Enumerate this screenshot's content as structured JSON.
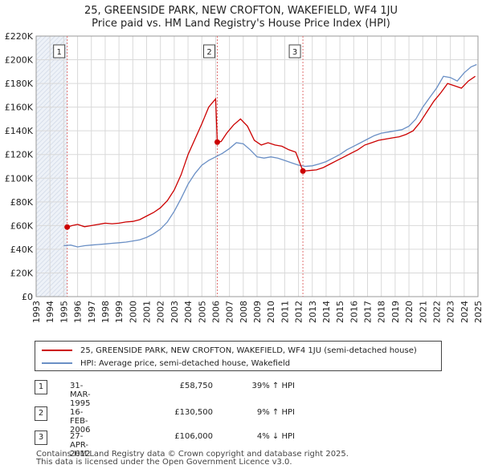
{
  "header": {
    "title_line1": "25, GREENSIDE PARK, NEW CROFTON, WAKEFIELD, WF4 1JU",
    "title_line2": "Price paid vs. HM Land Registry's House Price Index (HPI)"
  },
  "colors": {
    "price_line": "#cc0000",
    "hpi_line": "#6a8fc5",
    "shade": "#e8eef6",
    "grid": "#d9d9d9",
    "vline": "#e07070"
  },
  "chart_data": {
    "type": "line",
    "title": "Price paid vs. HM Land Registry's House Price Index (HPI)",
    "xlim": [
      1993,
      2025
    ],
    "ylim": [
      0,
      220000
    ],
    "x_ticks": [
      1993,
      1994,
      1995,
      1996,
      1997,
      1998,
      1999,
      2000,
      2001,
      2002,
      2003,
      2004,
      2005,
      2006,
      2007,
      2008,
      2009,
      2010,
      2011,
      2012,
      2013,
      2014,
      2015,
      2016,
      2017,
      2018,
      2019,
      2020,
      2021,
      2022,
      2023,
      2024,
      2025
    ],
    "y_ticks": [
      0,
      20000,
      40000,
      60000,
      80000,
      100000,
      120000,
      140000,
      160000,
      180000,
      200000,
      220000
    ],
    "y_tick_labels": [
      "£0",
      "£20K",
      "£40K",
      "£60K",
      "£80K",
      "£100K",
      "£120K",
      "£140K",
      "£160K",
      "£180K",
      "£200K",
      "£220K"
    ],
    "series": [
      {
        "name": "25, GREENSIDE PARK, NEW CROFTON, WAKEFIELD, WF4 1JU (semi-detached house)",
        "color": "#cc0000",
        "points": [
          [
            1995.25,
            58750
          ],
          [
            1995.6,
            60000
          ],
          [
            1996.0,
            61000
          ],
          [
            1996.5,
            59000
          ],
          [
            1997.0,
            60000
          ],
          [
            1997.5,
            61000
          ],
          [
            1998.0,
            62000
          ],
          [
            1998.5,
            61500
          ],
          [
            1999.0,
            62000
          ],
          [
            1999.5,
            63000
          ],
          [
            2000.0,
            63500
          ],
          [
            2000.5,
            65000
          ],
          [
            2001.0,
            68000
          ],
          [
            2001.5,
            71000
          ],
          [
            2002.0,
            75000
          ],
          [
            2002.5,
            81000
          ],
          [
            2003.0,
            90000
          ],
          [
            2003.5,
            103000
          ],
          [
            2004.0,
            120000
          ],
          [
            2004.5,
            133000
          ],
          [
            2005.0,
            146000
          ],
          [
            2005.5,
            160000
          ],
          [
            2006.0,
            167000
          ],
          [
            2006.12,
            130500
          ],
          [
            2006.4,
            131000
          ],
          [
            2006.8,
            138000
          ],
          [
            2007.3,
            145000
          ],
          [
            2007.8,
            150000
          ],
          [
            2008.3,
            144000
          ],
          [
            2008.8,
            132000
          ],
          [
            2009.3,
            128000
          ],
          [
            2009.8,
            130000
          ],
          [
            2010.3,
            128000
          ],
          [
            2010.8,
            127000
          ],
          [
            2011.3,
            124000
          ],
          [
            2011.8,
            122000
          ],
          [
            2012.32,
            106000
          ],
          [
            2012.8,
            106500
          ],
          [
            2013.3,
            107000
          ],
          [
            2013.8,
            109000
          ],
          [
            2014.3,
            112000
          ],
          [
            2014.8,
            115000
          ],
          [
            2015.3,
            118000
          ],
          [
            2015.8,
            121000
          ],
          [
            2016.3,
            124000
          ],
          [
            2016.8,
            128000
          ],
          [
            2017.3,
            130000
          ],
          [
            2017.8,
            132000
          ],
          [
            2018.3,
            133000
          ],
          [
            2018.8,
            134000
          ],
          [
            2019.3,
            135000
          ],
          [
            2019.8,
            137000
          ],
          [
            2020.3,
            140000
          ],
          [
            2020.8,
            147000
          ],
          [
            2021.3,
            156000
          ],
          [
            2021.8,
            165000
          ],
          [
            2022.3,
            172000
          ],
          [
            2022.8,
            180000
          ],
          [
            2023.3,
            178000
          ],
          [
            2023.8,
            176000
          ],
          [
            2024.3,
            182000
          ],
          [
            2024.8,
            186000
          ]
        ]
      },
      {
        "name": "HPI: Average price, semi-detached house, Wakefield",
        "color": "#6a8fc5",
        "points": [
          [
            1995.0,
            43000
          ],
          [
            1995.5,
            43500
          ],
          [
            1996.0,
            42000
          ],
          [
            1996.5,
            43000
          ],
          [
            1997.0,
            43500
          ],
          [
            1997.5,
            44000
          ],
          [
            1998.0,
            44500
          ],
          [
            1998.5,
            45000
          ],
          [
            1999.0,
            45500
          ],
          [
            1999.5,
            46000
          ],
          [
            2000.0,
            47000
          ],
          [
            2000.5,
            48000
          ],
          [
            2001.0,
            50000
          ],
          [
            2001.5,
            53000
          ],
          [
            2002.0,
            57000
          ],
          [
            2002.5,
            63000
          ],
          [
            2003.0,
            72000
          ],
          [
            2003.5,
            83000
          ],
          [
            2004.0,
            95000
          ],
          [
            2004.5,
            104000
          ],
          [
            2005.0,
            111000
          ],
          [
            2005.5,
            115000
          ],
          [
            2006.0,
            118000
          ],
          [
            2006.5,
            121000
          ],
          [
            2007.0,
            125000
          ],
          [
            2007.5,
            130000
          ],
          [
            2008.0,
            129000
          ],
          [
            2008.5,
            124000
          ],
          [
            2009.0,
            118000
          ],
          [
            2009.5,
            117000
          ],
          [
            2010.0,
            118000
          ],
          [
            2010.5,
            117000
          ],
          [
            2011.0,
            115000
          ],
          [
            2011.5,
            113000
          ],
          [
            2012.0,
            111000
          ],
          [
            2012.5,
            110000
          ],
          [
            2013.0,
            110500
          ],
          [
            2013.5,
            112000
          ],
          [
            2014.0,
            114000
          ],
          [
            2014.5,
            117000
          ],
          [
            2015.0,
            120000
          ],
          [
            2015.5,
            124000
          ],
          [
            2016.0,
            127000
          ],
          [
            2016.5,
            130000
          ],
          [
            2017.0,
            133000
          ],
          [
            2017.5,
            136000
          ],
          [
            2018.0,
            138000
          ],
          [
            2018.5,
            139000
          ],
          [
            2019.0,
            140000
          ],
          [
            2019.5,
            141000
          ],
          [
            2020.0,
            144000
          ],
          [
            2020.5,
            150000
          ],
          [
            2021.0,
            160000
          ],
          [
            2021.5,
            168000
          ],
          [
            2022.0,
            176000
          ],
          [
            2022.5,
            186000
          ],
          [
            2023.0,
            185000
          ],
          [
            2023.5,
            182000
          ],
          [
            2024.0,
            189000
          ],
          [
            2024.5,
            194000
          ],
          [
            2024.9,
            196000
          ]
        ]
      }
    ],
    "sales": [
      {
        "label": "1",
        "x": 1995.25,
        "y": 58750
      },
      {
        "label": "2",
        "x": 2006.12,
        "y": 130500
      },
      {
        "label": "3",
        "x": 2012.32,
        "y": 106000
      }
    ],
    "shaded_region": [
      1993,
      1995.25
    ]
  },
  "legend": {
    "price_label": "25, GREENSIDE PARK, NEW CROFTON, WAKEFIELD, WF4 1JU (semi-detached house)",
    "hpi_label": "HPI: Average price, semi-detached house, Wakefield"
  },
  "sales_table": [
    {
      "num": "1",
      "date": "31-MAR-1995",
      "price": "£58,750",
      "hpi": "39% ↑ HPI"
    },
    {
      "num": "2",
      "date": "16-FEB-2006",
      "price": "£130,500",
      "hpi": "9% ↑ HPI"
    },
    {
      "num": "3",
      "date": "27-APR-2012",
      "price": "£106,000",
      "hpi": "4% ↓ HPI"
    }
  ],
  "footer": {
    "line1": "Contains HM Land Registry data © Crown copyright and database right 2025.",
    "line2": "This data is licensed under the Open Government Licence v3.0."
  }
}
